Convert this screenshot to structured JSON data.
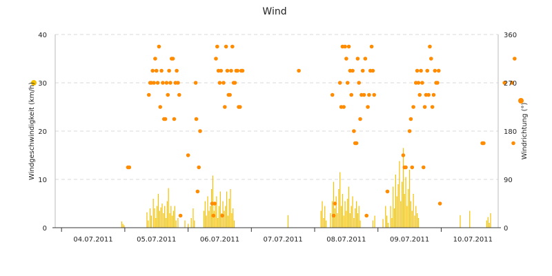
{
  "chart_data": {
    "type": "bar+scatter",
    "title": "Wind",
    "x_categories": [
      "04.07.2011",
      "05.07.2011",
      "06.07.2011",
      "07.07.2011",
      "08.07.2011",
      "09.07.2011",
      "10.07.2011"
    ],
    "x_range_days": [
      -0.1,
      6.9
    ],
    "y_left": {
      "label": "Windgeschwindigkeit (km/h)",
      "range": [
        0,
        40
      ],
      "ticks": [
        0,
        10,
        20,
        30,
        40
      ],
      "legend_color": "#f5c000"
    },
    "y_right": {
      "label": "Windrichtung (°)",
      "range": [
        0,
        360
      ],
      "ticks": [
        0,
        90,
        180,
        270,
        360
      ],
      "legend_color": "#ff8c00"
    },
    "grid": true,
    "series": [
      {
        "name": "Windgeschwindigkeit",
        "type": "bar",
        "axis": "left",
        "color": "#f5c000",
        "points": [
          [
            0.95,
            1.3
          ],
          [
            0.97,
            0.8
          ],
          [
            0.99,
            0.5
          ],
          [
            1.35,
            3.2
          ],
          [
            1.37,
            1.5
          ],
          [
            1.4,
            4.0
          ],
          [
            1.42,
            2.5
          ],
          [
            1.45,
            6.0
          ],
          [
            1.47,
            4.0
          ],
          [
            1.49,
            2.0
          ],
          [
            1.51,
            4.5
          ],
          [
            1.53,
            7.0
          ],
          [
            1.55,
            3.5
          ],
          [
            1.57,
            4.2
          ],
          [
            1.59,
            5.0
          ],
          [
            1.61,
            3.0
          ],
          [
            1.63,
            4.5
          ],
          [
            1.65,
            2.0
          ],
          [
            1.67,
            5.5
          ],
          [
            1.69,
            8.2
          ],
          [
            1.71,
            3.0
          ],
          [
            1.73,
            4.5
          ],
          [
            1.75,
            2.5
          ],
          [
            1.77,
            3.5
          ],
          [
            1.79,
            4.5
          ],
          [
            1.81,
            1.5
          ],
          [
            1.84,
            2.0
          ],
          [
            1.95,
            1.5
          ],
          [
            2.0,
            0.8
          ],
          [
            2.05,
            2.0
          ],
          [
            2.08,
            4.0
          ],
          [
            2.1,
            1.5
          ],
          [
            2.25,
            3.5
          ],
          [
            2.27,
            5.5
          ],
          [
            2.29,
            2.5
          ],
          [
            2.31,
            6.5
          ],
          [
            2.33,
            3.5
          ],
          [
            2.35,
            4.5
          ],
          [
            2.37,
            8.0
          ],
          [
            2.39,
            10.8
          ],
          [
            2.41,
            3.5
          ],
          [
            2.43,
            5.0
          ],
          [
            2.45,
            6.5
          ],
          [
            2.47,
            2.0
          ],
          [
            2.49,
            4.5
          ],
          [
            2.51,
            7.5
          ],
          [
            2.53,
            3.0
          ],
          [
            2.55,
            5.5
          ],
          [
            2.57,
            3.5
          ],
          [
            2.59,
            4.5
          ],
          [
            2.61,
            7.5
          ],
          [
            2.63,
            2.5
          ],
          [
            2.65,
            6.0
          ],
          [
            2.67,
            8.0
          ],
          [
            2.69,
            3.0
          ],
          [
            2.71,
            4.0
          ],
          [
            2.73,
            1.5
          ],
          [
            3.58,
            2.6
          ],
          [
            4.1,
            3.5
          ],
          [
            4.12,
            5.5
          ],
          [
            4.14,
            2.0
          ],
          [
            4.16,
            4.5
          ],
          [
            4.18,
            1.5
          ],
          [
            4.25,
            3.0
          ],
          [
            4.28,
            5.5
          ],
          [
            4.3,
            9.5
          ],
          [
            4.32,
            4.0
          ],
          [
            4.34,
            6.5
          ],
          [
            4.36,
            3.0
          ],
          [
            4.38,
            8.0
          ],
          [
            4.4,
            11.5
          ],
          [
            4.42,
            4.5
          ],
          [
            4.44,
            7.0
          ],
          [
            4.46,
            2.5
          ],
          [
            4.48,
            5.5
          ],
          [
            4.5,
            3.5
          ],
          [
            4.52,
            6.0
          ],
          [
            4.54,
            8.5
          ],
          [
            4.56,
            3.0
          ],
          [
            4.58,
            4.5
          ],
          [
            4.6,
            6.5
          ],
          [
            4.62,
            2.0
          ],
          [
            4.64,
            4.0
          ],
          [
            4.66,
            5.5
          ],
          [
            4.68,
            3.0
          ],
          [
            4.7,
            4.5
          ],
          [
            4.72,
            1.5
          ],
          [
            4.92,
            1.5
          ],
          [
            4.95,
            2.5
          ],
          [
            5.08,
            1.8
          ],
          [
            5.12,
            4.5
          ],
          [
            5.14,
            2.5
          ],
          [
            5.16,
            1.0
          ],
          [
            5.2,
            4.5
          ],
          [
            5.22,
            2.0
          ],
          [
            5.24,
            8.5
          ],
          [
            5.26,
            4.0
          ],
          [
            5.28,
            11.0
          ],
          [
            5.3,
            6.5
          ],
          [
            5.32,
            9.0
          ],
          [
            5.34,
            13.8
          ],
          [
            5.36,
            5.5
          ],
          [
            5.38,
            9.5
          ],
          [
            5.4,
            16.5
          ],
          [
            5.42,
            7.0
          ],
          [
            5.44,
            10.5
          ],
          [
            5.46,
            4.5
          ],
          [
            5.48,
            8.0
          ],
          [
            5.5,
            12.0
          ],
          [
            5.52,
            5.5
          ],
          [
            5.54,
            3.5
          ],
          [
            5.56,
            7.0
          ],
          [
            5.58,
            2.5
          ],
          [
            5.6,
            4.5
          ],
          [
            5.62,
            3.0
          ],
          [
            5.64,
            2.0
          ],
          [
            6.3,
            2.6
          ],
          [
            6.45,
            3.5
          ],
          [
            6.72,
            1.5
          ],
          [
            6.74,
            2.2
          ],
          [
            6.76,
            1.0
          ],
          [
            6.78,
            3.0
          ]
        ]
      },
      {
        "name": "Windrichtung",
        "type": "scatter",
        "axis": "right",
        "color": "#ff8c00",
        "points": [
          [
            1.05,
            112.5
          ],
          [
            1.07,
            112.5
          ],
          [
            1.38,
            247.5
          ],
          [
            1.4,
            270
          ],
          [
            1.42,
            270
          ],
          [
            1.44,
            292.5
          ],
          [
            1.46,
            270
          ],
          [
            1.48,
            315
          ],
          [
            1.5,
            292.5
          ],
          [
            1.52,
            270
          ],
          [
            1.54,
            337.5
          ],
          [
            1.56,
            225
          ],
          [
            1.58,
            292.5
          ],
          [
            1.6,
            270
          ],
          [
            1.62,
            202.5
          ],
          [
            1.64,
            202.5
          ],
          [
            1.66,
            270
          ],
          [
            1.68,
            247.5
          ],
          [
            1.7,
            292.5
          ],
          [
            1.72,
            270
          ],
          [
            1.74,
            315
          ],
          [
            1.76,
            315
          ],
          [
            1.78,
            202.5
          ],
          [
            1.8,
            270
          ],
          [
            1.82,
            292.5
          ],
          [
            1.84,
            270
          ],
          [
            1.86,
            247.5
          ],
          [
            1.88,
            22.5
          ],
          [
            2.0,
            135
          ],
          [
            2.12,
            270
          ],
          [
            2.13,
            202.5
          ],
          [
            2.15,
            67.5
          ],
          [
            2.17,
            112.5
          ],
          [
            2.19,
            180
          ],
          [
            2.38,
            45
          ],
          [
            2.4,
            22.5
          ],
          [
            2.42,
            45
          ],
          [
            2.44,
            315
          ],
          [
            2.46,
            337.5
          ],
          [
            2.48,
            292.5
          ],
          [
            2.5,
            270
          ],
          [
            2.52,
            292.5
          ],
          [
            2.54,
            22.5
          ],
          [
            2.56,
            270
          ],
          [
            2.58,
            225
          ],
          [
            2.6,
            337.5
          ],
          [
            2.62,
            292.5
          ],
          [
            2.64,
            247.5
          ],
          [
            2.66,
            247.5
          ],
          [
            2.68,
            292.5
          ],
          [
            2.7,
            337.5
          ],
          [
            2.72,
            270
          ],
          [
            2.74,
            270
          ],
          [
            2.76,
            292.5
          ],
          [
            2.78,
            292.5
          ],
          [
            2.8,
            225
          ],
          [
            2.82,
            225
          ],
          [
            2.84,
            292.5
          ],
          [
            2.86,
            292.5
          ],
          [
            3.75,
            292.5
          ],
          [
            4.28,
            247.5
          ],
          [
            4.3,
            22.5
          ],
          [
            4.32,
            45
          ],
          [
            4.4,
            270
          ],
          [
            4.42,
            225
          ],
          [
            4.44,
            337.5
          ],
          [
            4.46,
            225
          ],
          [
            4.48,
            337.5
          ],
          [
            4.5,
            315
          ],
          [
            4.52,
            270
          ],
          [
            4.54,
            337.5
          ],
          [
            4.56,
            292.5
          ],
          [
            4.58,
            247.5
          ],
          [
            4.6,
            292.5
          ],
          [
            4.62,
            180
          ],
          [
            4.64,
            157.5
          ],
          [
            4.66,
            157.5
          ],
          [
            4.68,
            315
          ],
          [
            4.7,
            270
          ],
          [
            4.72,
            202.5
          ],
          [
            4.74,
            247.5
          ],
          [
            4.76,
            292.5
          ],
          [
            4.78,
            247.5
          ],
          [
            4.8,
            315
          ],
          [
            4.82,
            22.5
          ],
          [
            4.84,
            225
          ],
          [
            4.86,
            247.5
          ],
          [
            4.88,
            292.5
          ],
          [
            4.9,
            337.5
          ],
          [
            4.92,
            292.5
          ],
          [
            4.94,
            247.5
          ],
          [
            5.15,
            67.5
          ],
          [
            5.4,
            135
          ],
          [
            5.42,
            112.5
          ],
          [
            5.44,
            112.5
          ],
          [
            5.5,
            180
          ],
          [
            5.52,
            202.5
          ],
          [
            5.54,
            112.5
          ],
          [
            5.56,
            225
          ],
          [
            5.6,
            270
          ],
          [
            5.62,
            292.5
          ],
          [
            5.64,
            270
          ],
          [
            5.66,
            247.5
          ],
          [
            5.68,
            292.5
          ],
          [
            5.7,
            270
          ],
          [
            5.72,
            112.5
          ],
          [
            5.74,
            225
          ],
          [
            5.76,
            247.5
          ],
          [
            5.78,
            292.5
          ],
          [
            5.8,
            247.5
          ],
          [
            5.82,
            337.5
          ],
          [
            5.84,
            315
          ],
          [
            5.86,
            225
          ],
          [
            5.88,
            247.5
          ],
          [
            5.9,
            292.5
          ],
          [
            5.92,
            270
          ],
          [
            5.94,
            270
          ],
          [
            5.96,
            292.5
          ],
          [
            5.98,
            45
          ],
          [
            6.65,
            157.5
          ],
          [
            6.67,
            157.5
          ],
          [
            7.0,
            270
          ],
          [
            7.12,
            270
          ],
          [
            7.14,
            157.5
          ],
          [
            7.16,
            315
          ]
        ]
      }
    ]
  }
}
